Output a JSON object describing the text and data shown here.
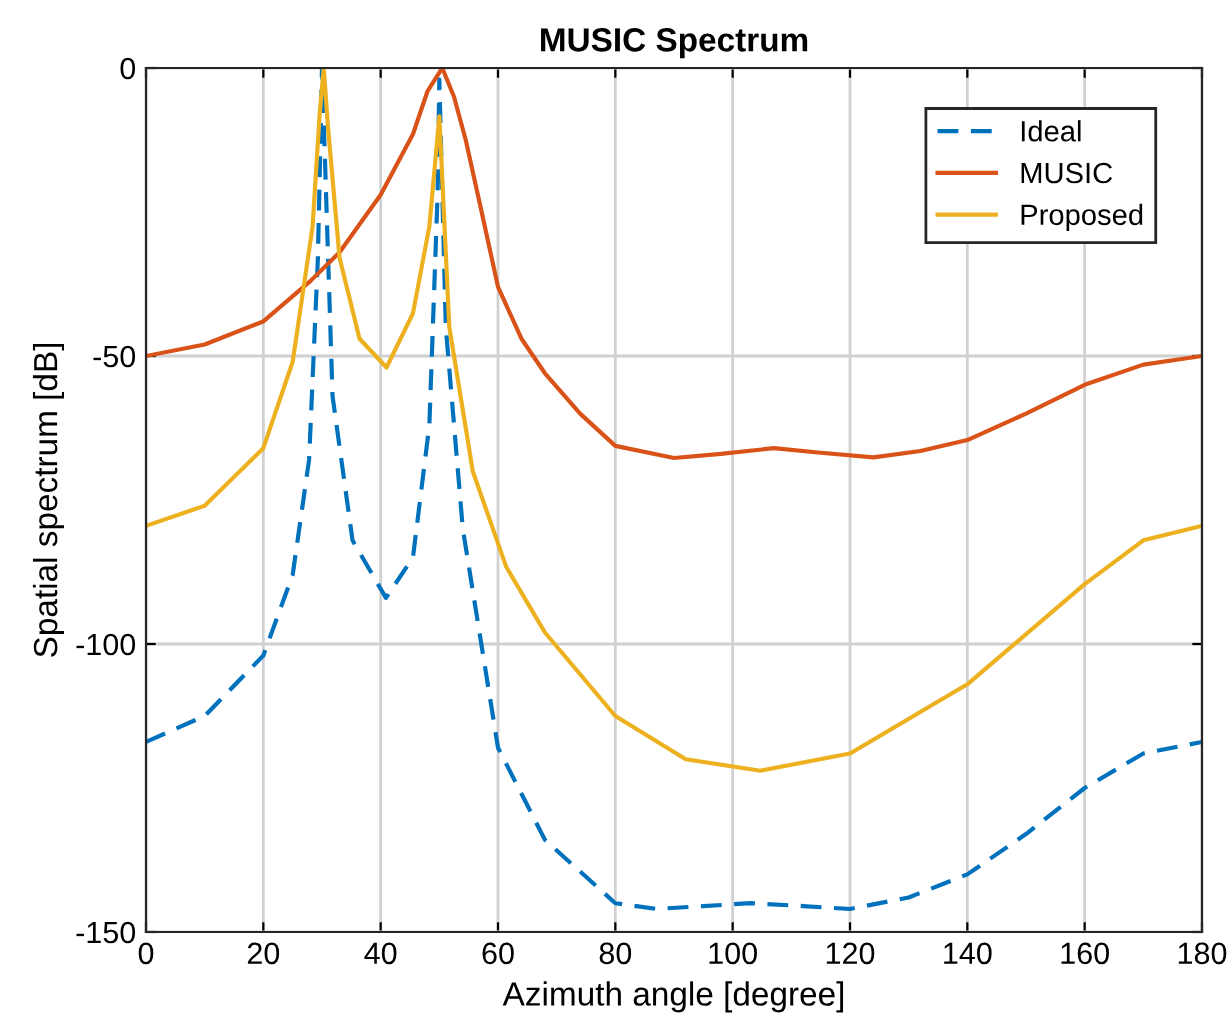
{
  "chart_data": {
    "type": "line",
    "title": "MUSIC Spectrum",
    "xlabel": "Azimuth angle [degree]",
    "ylabel": "Spatial spectrum [dB]",
    "xlim": [
      0,
      180
    ],
    "ylim": [
      -150,
      0
    ],
    "xticks": [
      0,
      20,
      40,
      60,
      80,
      100,
      120,
      140,
      160,
      180
    ],
    "yticks": [
      -150,
      -100,
      -50,
      0
    ],
    "grid": true,
    "legend": "top right",
    "marker": "none",
    "series": [
      {
        "name": "Ideal",
        "color": "#0072bd",
        "line_style": "dashed",
        "x": [
          0,
          10,
          20,
          25,
          27.8,
          29.3,
          30,
          31.8,
          35.2,
          40.9,
          45.5,
          48.3,
          49.7,
          50,
          51.1,
          54,
          60,
          64,
          68,
          80,
          87,
          95,
          103,
          112,
          120,
          130,
          140,
          150,
          160,
          170,
          180
        ],
        "values": [
          -117,
          -112.5,
          -102,
          -88,
          -68,
          -33,
          0,
          -57,
          -82,
          -92,
          -85,
          -62,
          -22,
          -2,
          -45,
          -80,
          -118,
          -126,
          -134,
          -145,
          -146,
          -145.5,
          -145,
          -145.5,
          -146,
          -144,
          -140,
          -133,
          -125,
          -119,
          -117
        ]
      },
      {
        "name": "MUSIC",
        "color": "#d95319",
        "line_style": "solid",
        "x": [
          0,
          10,
          20,
          28,
          33,
          40,
          45.5,
          48,
          50.5,
          52.5,
          54.5,
          57,
          60,
          64,
          68,
          74,
          80,
          90,
          98,
          107,
          115,
          124,
          132,
          140,
          150,
          160,
          170,
          180
        ],
        "values": [
          -50,
          -48,
          -44,
          -37,
          -32,
          -22,
          -11.5,
          -4,
          0,
          -5,
          -12.5,
          -24,
          -38,
          -47,
          -53,
          -60,
          -65.6,
          -67.7,
          -67,
          -66,
          -66.8,
          -67.6,
          -66.5,
          -64.6,
          -60,
          -55,
          -51.5,
          -50
        ]
      },
      {
        "name": "Proposed",
        "color": "#edb120",
        "line_style": "solid",
        "x": [
          0,
          10,
          20,
          25,
          28.4,
          29.6,
          30.3,
          31,
          33,
          36.4,
          41,
          45.5,
          48.3,
          50,
          51.7,
          55.7,
          61.4,
          68,
          80,
          92,
          104.7,
          120,
          140,
          160,
          170,
          180
        ],
        "values": [
          -79.5,
          -76,
          -66,
          -51,
          -27.5,
          -8,
          0,
          -10,
          -33,
          -47,
          -52,
          -42.6,
          -27.5,
          -8.4,
          -45,
          -70,
          -86.6,
          -98,
          -112.5,
          -120,
          -122,
          -119,
          -107,
          -89.6,
          -82,
          -79.5
        ]
      }
    ]
  }
}
